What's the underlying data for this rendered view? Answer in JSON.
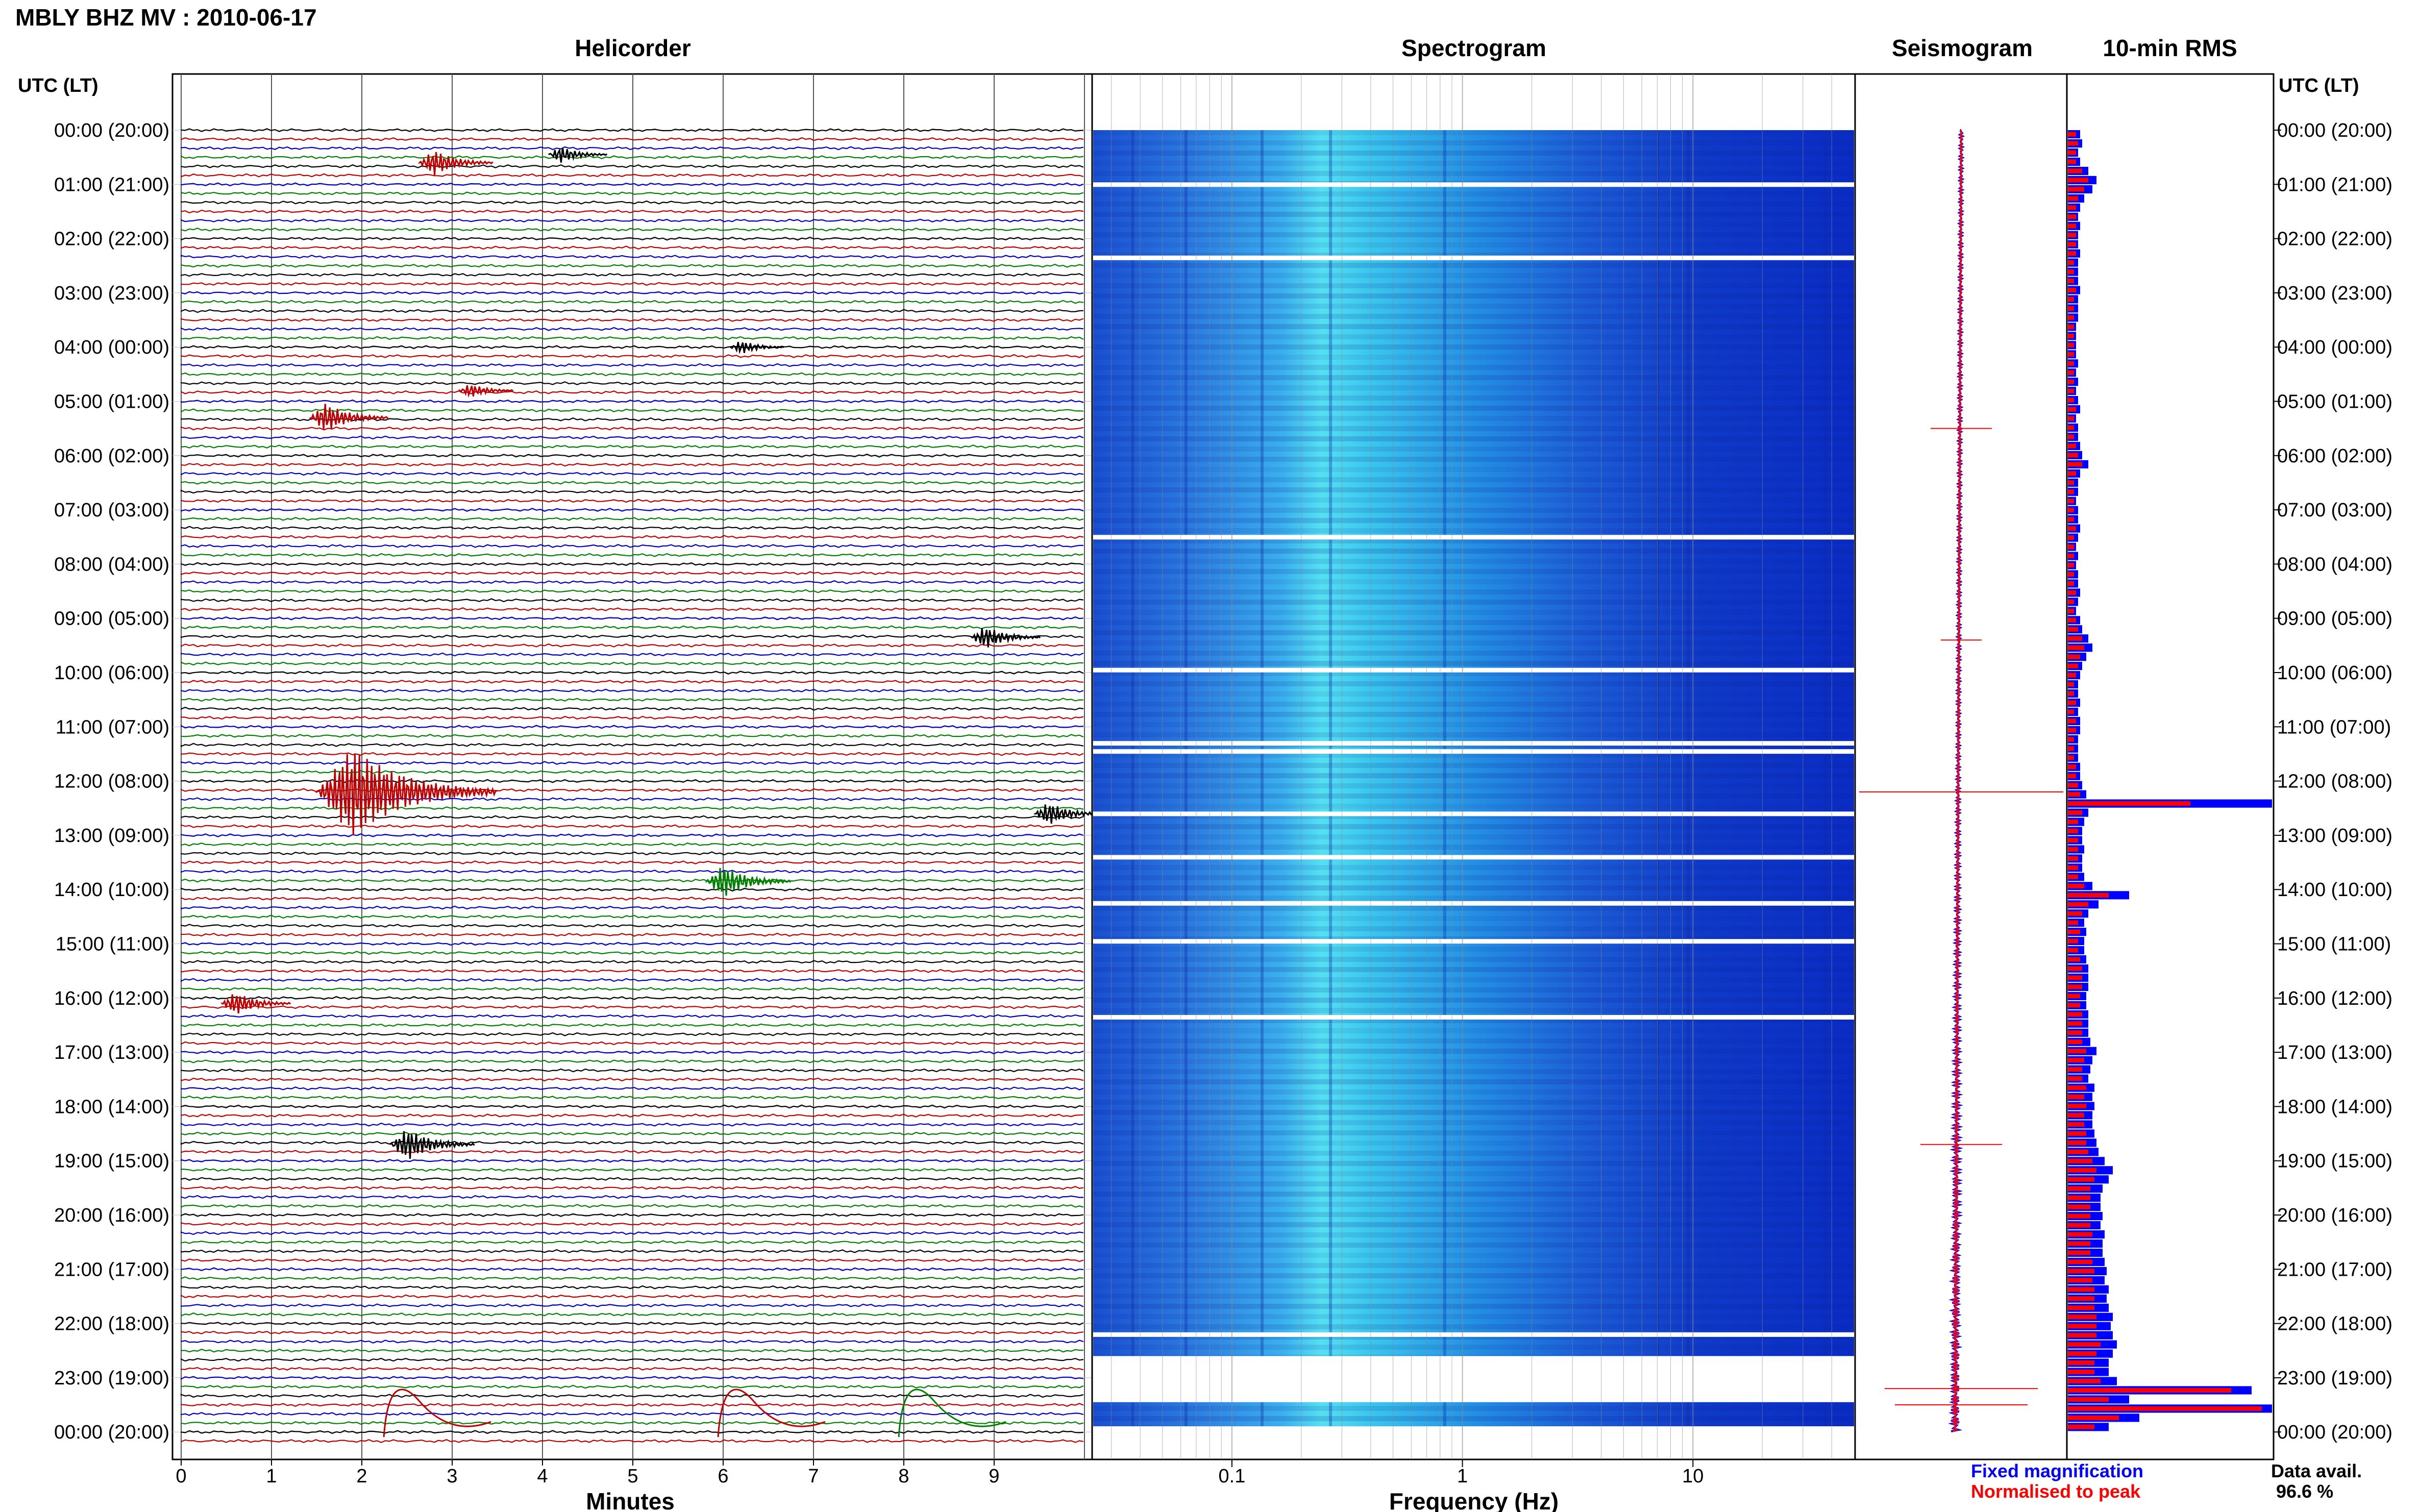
{
  "title": "MBLY BHZ MV : 2010-06-17",
  "panels": {
    "helicorder": "Helicorder",
    "spectrogram": "Spectrogram",
    "seismogram": "Seismogram",
    "rms": "10-min RMS"
  },
  "axis": {
    "time_header_left": "UTC (LT)",
    "time_header_right": "UTC (LT)",
    "time_labels": [
      "00:00 (20:00)",
      "01:00 (21:00)",
      "02:00 (22:00)",
      "03:00 (23:00)",
      "04:00 (00:00)",
      "05:00 (01:00)",
      "06:00 (02:00)",
      "07:00 (03:00)",
      "08:00 (04:00)",
      "09:00 (05:00)",
      "10:00 (06:00)",
      "11:00 (07:00)",
      "12:00 (08:00)",
      "13:00 (09:00)",
      "14:00 (10:00)",
      "15:00 (11:00)",
      "16:00 (12:00)",
      "17:00 (13:00)",
      "18:00 (14:00)",
      "19:00 (15:00)",
      "20:00 (16:00)",
      "21:00 (17:00)",
      "22:00 (18:00)",
      "23:00 (19:00)",
      "00:00 (20:00)"
    ],
    "minutes_ticks": [
      "0",
      "1",
      "2",
      "3",
      "4",
      "5",
      "6",
      "7",
      "8",
      "9"
    ],
    "minutes_label": "Minutes",
    "freq_ticks": [
      "0.1",
      "1",
      "10"
    ],
    "freq_label": "Frequency (Hz)"
  },
  "legend": {
    "fixed": "Fixed magnification",
    "normalised": "Normalised to peak",
    "data_avail_label": "Data avail.",
    "data_avail_value": "96.6 %"
  },
  "colors": {
    "trace_cycle": [
      "#000000",
      "#c00000",
      "#0000c0",
      "#008000"
    ],
    "fixed": "#0000ff",
    "normalised": "#ff0000"
  },
  "chart_data": {
    "type": "helicorder",
    "station": "MBLY BHZ MV",
    "date": "2010-06-17",
    "hours_utc": 24,
    "minutes_per_line": 10,
    "spectrogram_freq_range_hz": [
      0.025,
      50
    ],
    "events": [
      {
        "hour": 0.6,
        "minute": 2.8,
        "color": "#c00000",
        "amp": 0.35
      },
      {
        "hour": 0.45,
        "minute": 4.2,
        "color": "#000000",
        "amp": 0.2
      },
      {
        "hour": 4.0,
        "minute": 6.2,
        "color": "#000000",
        "amp": 0.15
      },
      {
        "hour": 4.8,
        "minute": 3.2,
        "color": "#c00000",
        "amp": 0.15
      },
      {
        "hour": 5.3,
        "minute": 1.6,
        "color": "#c00000",
        "amp": 0.4
      },
      {
        "hour": 9.35,
        "minute": 8.9,
        "color": "#000000",
        "amp": 0.3
      },
      {
        "hour": 12.2,
        "minute": 1.9,
        "color": "#c00000",
        "amp": 1.4
      },
      {
        "hour": 12.6,
        "minute": 9.6,
        "color": "#000000",
        "amp": 0.3
      },
      {
        "hour": 13.85,
        "minute": 6.0,
        "color": "#008000",
        "amp": 0.45
      },
      {
        "hour": 16.1,
        "minute": 0.6,
        "color": "#c00000",
        "amp": 0.3
      },
      {
        "hour": 18.7,
        "minute": 2.5,
        "color": "#000000",
        "amp": 0.45
      }
    ],
    "rms": {
      "fixed": [
        0.06,
        0.07,
        0.05,
        0.06,
        0.1,
        0.14,
        0.12,
        0.08,
        0.06,
        0.05,
        0.06,
        0.05,
        0.05,
        0.06,
        0.05,
        0.05,
        0.05,
        0.06,
        0.05,
        0.05,
        0.05,
        0.04,
        0.04,
        0.04,
        0.04,
        0.05,
        0.04,
        0.05,
        0.04,
        0.05,
        0.06,
        0.04,
        0.05,
        0.05,
        0.06,
        0.07,
        0.1,
        0.06,
        0.05,
        0.05,
        0.04,
        0.05,
        0.05,
        0.06,
        0.05,
        0.04,
        0.05,
        0.04,
        0.05,
        0.05,
        0.06,
        0.05,
        0.04,
        0.06,
        0.07,
        0.1,
        0.12,
        0.09,
        0.07,
        0.06,
        0.05,
        0.05,
        0.06,
        0.05,
        0.06,
        0.06,
        0.05,
        0.05,
        0.05,
        0.06,
        0.06,
        0.07,
        0.09,
        1.0,
        0.1,
        0.08,
        0.07,
        0.07,
        0.08,
        0.07,
        0.07,
        0.08,
        0.12,
        0.3,
        0.15,
        0.1,
        0.08,
        0.09,
        0.08,
        0.08,
        0.09,
        0.1,
        0.1,
        0.1,
        0.09,
        0.09,
        0.1,
        0.1,
        0.1,
        0.11,
        0.14,
        0.12,
        0.11,
        0.1,
        0.13,
        0.12,
        0.13,
        0.12,
        0.12,
        0.13,
        0.14,
        0.15,
        0.18,
        0.22,
        0.2,
        0.17,
        0.16,
        0.16,
        0.17,
        0.16,
        0.18,
        0.17,
        0.17,
        0.18,
        0.19,
        0.18,
        0.2,
        0.19,
        0.2,
        0.22,
        0.21,
        0.22,
        0.24,
        0.22,
        0.2,
        0.2,
        0.24,
        0.9,
        0.3,
        1.0,
        0.35,
        0.2
      ],
      "normalised": [
        0.04,
        0.05,
        0.04,
        0.04,
        0.07,
        0.1,
        0.08,
        0.05,
        0.04,
        0.04,
        0.04,
        0.04,
        0.04,
        0.04,
        0.03,
        0.03,
        0.03,
        0.04,
        0.03,
        0.03,
        0.03,
        0.03,
        0.03,
        0.03,
        0.03,
        0.03,
        0.03,
        0.03,
        0.03,
        0.03,
        0.04,
        0.03,
        0.03,
        0.03,
        0.04,
        0.05,
        0.07,
        0.04,
        0.03,
        0.03,
        0.03,
        0.03,
        0.03,
        0.04,
        0.03,
        0.03,
        0.03,
        0.03,
        0.03,
        0.03,
        0.04,
        0.03,
        0.03,
        0.04,
        0.05,
        0.07,
        0.08,
        0.06,
        0.05,
        0.04,
        0.03,
        0.03,
        0.04,
        0.03,
        0.04,
        0.04,
        0.03,
        0.03,
        0.03,
        0.04,
        0.04,
        0.05,
        0.06,
        0.6,
        0.07,
        0.05,
        0.05,
        0.05,
        0.05,
        0.05,
        0.05,
        0.05,
        0.08,
        0.2,
        0.1,
        0.07,
        0.05,
        0.06,
        0.05,
        0.05,
        0.06,
        0.07,
        0.07,
        0.07,
        0.06,
        0.06,
        0.07,
        0.07,
        0.07,
        0.07,
        0.09,
        0.08,
        0.07,
        0.07,
        0.09,
        0.08,
        0.09,
        0.08,
        0.08,
        0.09,
        0.09,
        0.1,
        0.12,
        0.14,
        0.13,
        0.11,
        0.11,
        0.11,
        0.11,
        0.11,
        0.12,
        0.11,
        0.11,
        0.12,
        0.13,
        0.12,
        0.13,
        0.13,
        0.13,
        0.14,
        0.14,
        0.14,
        0.16,
        0.14,
        0.13,
        0.13,
        0.16,
        0.8,
        0.2,
        0.95,
        0.25,
        0.13
      ]
    }
  }
}
